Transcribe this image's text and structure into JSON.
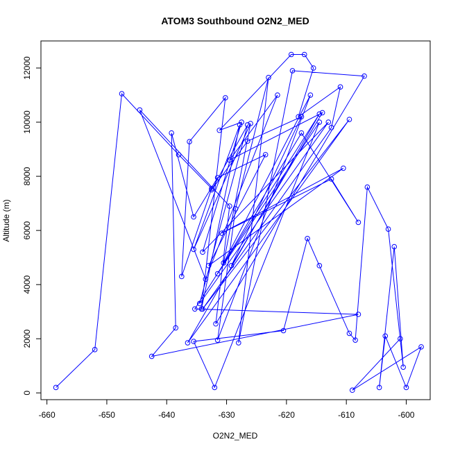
{
  "chart_data": {
    "type": "scatter",
    "title": "ATOM3 Southbound O2N2_MED",
    "xlabel": "O2N2_MED",
    "ylabel": "Altitude (m)",
    "xlim": [
      -661,
      -596
    ],
    "ylim": [
      -250,
      13000
    ],
    "xticks": [
      -660,
      -650,
      -640,
      -630,
      -620,
      -610,
      -600
    ],
    "yticks": [
      0,
      2000,
      4000,
      6000,
      8000,
      10000,
      12000
    ],
    "grid": false,
    "legend": "none",
    "series": [
      {
        "color": "#0000ff",
        "marker": "open-circle",
        "connected": true,
        "points": [
          [
            -658.5,
            200
          ],
          [
            -652,
            1600
          ],
          [
            -647.5,
            11050
          ],
          [
            -638,
            8800
          ],
          [
            -632.5,
            7550
          ],
          [
            -637.5,
            4300
          ],
          [
            -636.2,
            9280
          ],
          [
            -630.2,
            10900
          ],
          [
            -634.2,
            3100
          ],
          [
            -627.8,
            9900
          ],
          [
            -635.5,
            5300
          ],
          [
            -626,
            9950
          ],
          [
            -630.5,
            4800
          ],
          [
            -616,
            11000
          ],
          [
            -631.5,
            1950
          ],
          [
            -628.5,
            6800
          ],
          [
            -623,
            11650
          ],
          [
            -628,
            1850
          ],
          [
            -619,
            11900
          ],
          [
            -607,
            11700
          ],
          [
            -631.8,
            2550
          ],
          [
            -629.5,
            6900
          ],
          [
            -644.5,
            10450
          ],
          [
            -633.5,
            4200
          ],
          [
            -621.5,
            11000
          ],
          [
            -629.5,
            8600
          ],
          [
            -614,
            10350
          ],
          [
            -629.2,
            4700
          ],
          [
            -617.5,
            10200
          ],
          [
            -626.5,
            9300
          ],
          [
            -632.5,
            7500
          ],
          [
            -626.5,
            9900
          ],
          [
            -634.5,
            3300
          ],
          [
            -613,
            10000
          ],
          [
            -634,
            5200
          ],
          [
            -627.5,
            10000
          ],
          [
            -631.2,
            9700
          ],
          [
            -619.2,
            12500
          ],
          [
            -617,
            12500
          ],
          [
            -615.5,
            12000
          ],
          [
            -618,
            10200
          ],
          [
            -611,
            11300
          ],
          [
            -612.5,
            9800
          ],
          [
            -634,
            3100
          ],
          [
            -609.5,
            10100
          ],
          [
            -636.5,
            1850
          ],
          [
            -614.5,
            10300
          ],
          [
            -635.3,
            3100
          ],
          [
            -608,
            2900
          ],
          [
            -642.5,
            1350
          ],
          [
            -638.5,
            2400
          ],
          [
            -639.2,
            9600
          ],
          [
            -635.5,
            6500
          ],
          [
            -631.5,
            7950
          ],
          [
            -623.5,
            8800
          ],
          [
            -633,
            4700
          ],
          [
            -610.5,
            8300
          ],
          [
            -630.8,
            5900
          ],
          [
            -612.5,
            7900
          ],
          [
            -608,
            6300
          ],
          [
            -617.5,
            9600
          ],
          [
            -631.5,
            4400
          ],
          [
            -614.5,
            10000
          ],
          [
            -632,
            200
          ],
          [
            -635.5,
            1900
          ],
          [
            -620.5,
            2300
          ],
          [
            -616.5,
            5700
          ],
          [
            -614.5,
            4700
          ],
          [
            -609.5,
            2200
          ],
          [
            -608.5,
            1950
          ],
          [
            -606.5,
            7600
          ],
          [
            -603,
            6050
          ],
          [
            -600.5,
            950
          ],
          [
            -602,
            5400
          ],
          [
            -604.5,
            200
          ],
          [
            -603.5,
            2100
          ],
          [
            -600,
            200
          ],
          [
            -597.5,
            1700
          ],
          [
            -609,
            100
          ],
          [
            -601,
            2000
          ]
        ]
      }
    ]
  }
}
